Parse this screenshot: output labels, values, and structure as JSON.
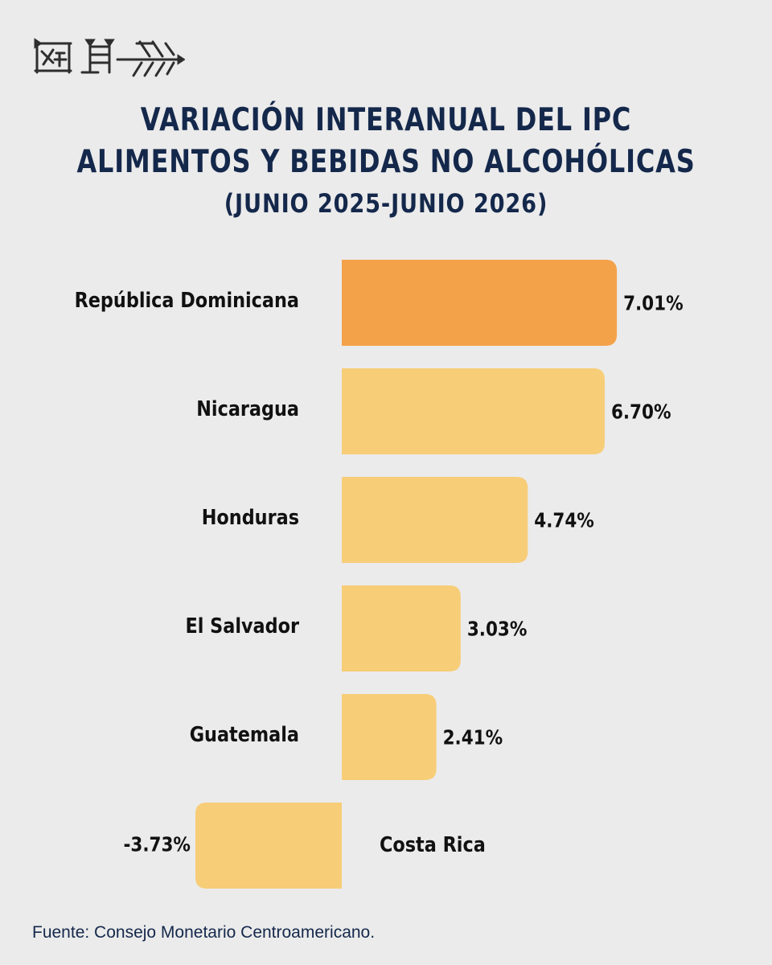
{
  "title": {
    "line1": "VARIACIÓN INTERANUAL DEL IPC",
    "line2": "ALIMENTOS Y BEBIDAS NO ALCOHÓLICAS",
    "subtitle": "(JUNIO 2025-JUNIO 2026)"
  },
  "logo": {
    "icon": "cuneiform-logo-icon"
  },
  "colors": {
    "background": "#ebebeb",
    "title": "#14284b",
    "highlight_bar": "#f4a24a",
    "bar": "#f7cd78",
    "label": "#111111"
  },
  "chart_data": {
    "type": "bar",
    "orientation": "horizontal",
    "categories": [
      "República Dominicana",
      "Nicaragua",
      "Honduras",
      "El Salvador",
      "Guatemala",
      "Costa Rica"
    ],
    "values": [
      7.01,
      6.7,
      4.74,
      3.03,
      2.41,
      -3.73
    ],
    "value_labels": [
      "7.01%",
      "6.70%",
      "4.74%",
      "3.03%",
      "2.41%",
      "-3.73%"
    ],
    "highlight_index": 0,
    "unit": "%",
    "title": "VARIACIÓN INTERANUAL DEL IPC ALIMENTOS Y BEBIDAS NO ALCOHÓLICAS",
    "subtitle": "(JUNIO 2025-JUNIO 2026)",
    "xlim": [
      -3.73,
      7.01
    ],
    "grid": false,
    "legend": "none"
  },
  "source": "Fuente: Consejo Monetario Centroamericano."
}
